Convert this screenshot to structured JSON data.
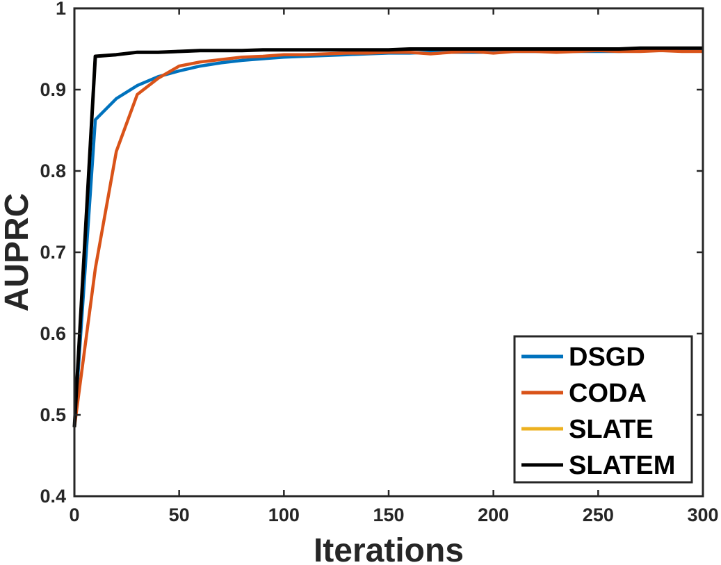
{
  "chart_data": {
    "type": "line",
    "title": "",
    "xlabel": "Iterations",
    "ylabel": "AUPRC",
    "xlim": [
      0,
      300
    ],
    "ylim": [
      0.4,
      1
    ],
    "xticks": [
      0,
      50,
      100,
      150,
      200,
      250,
      300
    ],
    "yticks": [
      0.4,
      0.5,
      0.6,
      0.7,
      0.8,
      0.9,
      1
    ],
    "xtick_labels": [
      "0",
      "50",
      "100",
      "150",
      "200",
      "250",
      "300"
    ],
    "ytick_labels": [
      "0.4",
      "0.5",
      "0.6",
      "0.7",
      "0.8",
      "0.9",
      "1"
    ],
    "grid": false,
    "legend_position": "bottom-right",
    "x": [
      0,
      10,
      20,
      30,
      40,
      50,
      60,
      70,
      80,
      90,
      100,
      110,
      120,
      130,
      140,
      150,
      160,
      170,
      180,
      190,
      200,
      210,
      220,
      230,
      240,
      250,
      260,
      270,
      280,
      290,
      300
    ],
    "series": [
      {
        "name": "DSGD",
        "color": "#0072BD",
        "values": [
          0.485,
          0.863,
          0.889,
          0.905,
          0.916,
          0.923,
          0.929,
          0.933,
          0.936,
          0.938,
          0.94,
          0.941,
          0.942,
          0.943,
          0.944,
          0.945,
          0.945,
          0.946,
          0.946,
          0.946,
          0.946,
          0.947,
          0.947,
          0.947,
          0.947,
          0.947,
          0.947,
          0.948,
          0.948,
          0.948,
          0.948
        ]
      },
      {
        "name": "CODA",
        "color": "#D95319",
        "values": [
          0.485,
          0.68,
          0.824,
          0.894,
          0.914,
          0.929,
          0.934,
          0.937,
          0.94,
          0.941,
          0.943,
          0.943,
          0.944,
          0.945,
          0.945,
          0.946,
          0.946,
          0.944,
          0.946,
          0.947,
          0.945,
          0.947,
          0.947,
          0.946,
          0.947,
          0.948,
          0.947,
          0.947,
          0.948,
          0.947,
          0.947
        ]
      },
      {
        "name": "SLATE",
        "color": "#EDB120",
        "values": [
          0.485,
          0.941,
          0.943,
          0.946,
          0.946,
          0.947,
          0.948,
          0.948,
          0.948,
          0.949,
          0.949,
          0.949,
          0.949,
          0.949,
          0.949,
          0.949,
          0.95,
          0.95,
          0.95,
          0.95,
          0.95,
          0.95,
          0.95,
          0.95,
          0.95,
          0.95,
          0.95,
          0.951,
          0.951,
          0.951,
          0.951
        ]
      },
      {
        "name": "SLATEM",
        "color": "#000000",
        "values": [
          0.485,
          0.941,
          0.943,
          0.946,
          0.946,
          0.947,
          0.948,
          0.948,
          0.948,
          0.949,
          0.949,
          0.949,
          0.949,
          0.949,
          0.949,
          0.949,
          0.95,
          0.95,
          0.95,
          0.95,
          0.95,
          0.95,
          0.95,
          0.95,
          0.95,
          0.95,
          0.95,
          0.951,
          0.951,
          0.951,
          0.951
        ]
      }
    ]
  }
}
